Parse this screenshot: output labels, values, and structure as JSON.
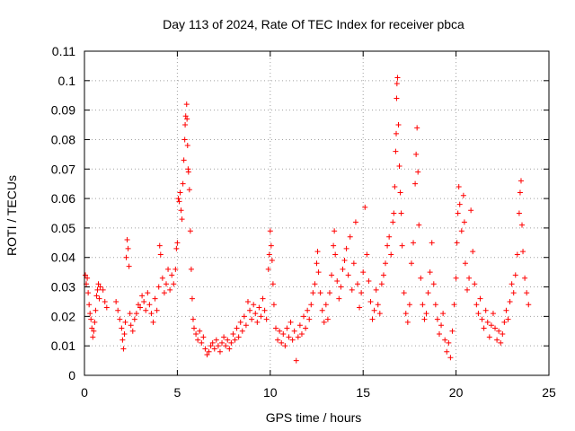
{
  "chart_data": {
    "type": "scatter",
    "title": "Day 113 of 2024, Rate Of TEC Index for receiver pbca",
    "xlabel": "GPS time / hours",
    "ylabel": "ROTI / TECUs",
    "xlim": [
      0,
      25
    ],
    "ylim": [
      0,
      0.11
    ],
    "x_ticks": [
      "0",
      "5",
      "10",
      "15",
      "20",
      "25"
    ],
    "y_ticks": [
      "0",
      "0.01",
      "0.02",
      "0.03",
      "0.04",
      "0.05",
      "0.06",
      "0.07",
      "0.08",
      "0.09",
      "0.1",
      "0.11"
    ],
    "grid": true,
    "marker": "+",
    "series_color": "#ff0000",
    "series": [
      {
        "name": "ROTI",
        "points": [
          [
            0.05,
            0.034
          ],
          [
            0.1,
            0.031
          ],
          [
            0.15,
            0.033
          ],
          [
            0.2,
            0.028
          ],
          [
            0.25,
            0.024
          ],
          [
            0.3,
            0.021
          ],
          [
            0.35,
            0.019
          ],
          [
            0.4,
            0.016
          ],
          [
            0.45,
            0.013
          ],
          [
            0.5,
            0.015
          ],
          [
            0.55,
            0.018
          ],
          [
            0.6,
            0.022
          ],
          [
            0.65,
            0.027
          ],
          [
            0.7,
            0.029
          ],
          [
            0.75,
            0.031
          ],
          [
            0.8,
            0.026
          ],
          [
            0.85,
            0.03
          ],
          [
            1.0,
            0.029
          ],
          [
            1.1,
            0.025
          ],
          [
            1.2,
            0.023
          ],
          [
            1.7,
            0.025
          ],
          [
            1.8,
            0.022
          ],
          [
            1.9,
            0.019
          ],
          [
            2.0,
            0.016
          ],
          [
            2.05,
            0.012
          ],
          [
            2.1,
            0.009
          ],
          [
            2.15,
            0.014
          ],
          [
            2.2,
            0.018
          ],
          [
            2.25,
            0.04
          ],
          [
            2.3,
            0.046
          ],
          [
            2.35,
            0.043
          ],
          [
            2.4,
            0.037
          ],
          [
            2.45,
            0.021
          ],
          [
            2.5,
            0.017
          ],
          [
            2.6,
            0.015
          ],
          [
            2.7,
            0.019
          ],
          [
            2.8,
            0.021
          ],
          [
            2.9,
            0.024
          ],
          [
            3.0,
            0.023
          ],
          [
            3.1,
            0.027
          ],
          [
            3.2,
            0.025
          ],
          [
            3.3,
            0.022
          ],
          [
            3.4,
            0.028
          ],
          [
            3.5,
            0.024
          ],
          [
            3.6,
            0.021
          ],
          [
            3.7,
            0.018
          ],
          [
            3.8,
            0.026
          ],
          [
            3.9,
            0.022
          ],
          [
            4.0,
            0.03
          ],
          [
            4.05,
            0.044
          ],
          [
            4.1,
            0.041
          ],
          [
            4.2,
            0.033
          ],
          [
            4.3,
            0.028
          ],
          [
            4.4,
            0.031
          ],
          [
            4.5,
            0.036
          ],
          [
            4.6,
            0.029
          ],
          [
            4.7,
            0.034
          ],
          [
            4.8,
            0.031
          ],
          [
            4.9,
            0.036
          ],
          [
            4.95,
            0.043
          ],
          [
            5.0,
            0.045
          ],
          [
            5.05,
            0.06
          ],
          [
            5.1,
            0.059
          ],
          [
            5.15,
            0.062
          ],
          [
            5.2,
            0.056
          ],
          [
            5.25,
            0.053
          ],
          [
            5.3,
            0.065
          ],
          [
            5.35,
            0.073
          ],
          [
            5.4,
            0.08
          ],
          [
            5.42,
            0.085
          ],
          [
            5.45,
            0.088
          ],
          [
            5.5,
            0.092
          ],
          [
            5.52,
            0.087
          ],
          [
            5.55,
            0.078
          ],
          [
            5.58,
            0.07
          ],
          [
            5.6,
            0.069
          ],
          [
            5.65,
            0.063
          ],
          [
            5.7,
            0.049
          ],
          [
            5.75,
            0.036
          ],
          [
            5.8,
            0.026
          ],
          [
            5.85,
            0.019
          ],
          [
            5.9,
            0.016
          ],
          [
            6.0,
            0.014
          ],
          [
            6.1,
            0.012
          ],
          [
            6.2,
            0.015
          ],
          [
            6.3,
            0.011
          ],
          [
            6.4,
            0.013
          ],
          [
            6.5,
            0.009
          ],
          [
            6.6,
            0.007
          ],
          [
            6.7,
            0.008
          ],
          [
            6.8,
            0.01
          ],
          [
            6.9,
            0.011
          ],
          [
            7.0,
            0.009
          ],
          [
            7.1,
            0.012
          ],
          [
            7.2,
            0.01
          ],
          [
            7.3,
            0.008
          ],
          [
            7.4,
            0.011
          ],
          [
            7.5,
            0.013
          ],
          [
            7.6,
            0.01
          ],
          [
            7.7,
            0.012
          ],
          [
            7.8,
            0.009
          ],
          [
            7.9,
            0.011
          ],
          [
            8.0,
            0.014
          ],
          [
            8.1,
            0.012
          ],
          [
            8.2,
            0.016
          ],
          [
            8.3,
            0.013
          ],
          [
            8.4,
            0.018
          ],
          [
            8.5,
            0.015
          ],
          [
            8.6,
            0.02
          ],
          [
            8.7,
            0.017
          ],
          [
            8.8,
            0.025
          ],
          [
            8.9,
            0.022
          ],
          [
            9.0,
            0.019
          ],
          [
            9.1,
            0.024
          ],
          [
            9.2,
            0.021
          ],
          [
            9.3,
            0.018
          ],
          [
            9.4,
            0.023
          ],
          [
            9.5,
            0.02
          ],
          [
            9.6,
            0.026
          ],
          [
            9.7,
            0.022
          ],
          [
            9.8,
            0.019
          ],
          [
            9.9,
            0.036
          ],
          [
            9.95,
            0.041
          ],
          [
            10.0,
            0.049
          ],
          [
            10.05,
            0.044
          ],
          [
            10.1,
            0.039
          ],
          [
            10.15,
            0.031
          ],
          [
            10.2,
            0.024
          ],
          [
            10.3,
            0.016
          ],
          [
            10.4,
            0.012
          ],
          [
            10.5,
            0.015
          ],
          [
            10.6,
            0.011
          ],
          [
            10.7,
            0.014
          ],
          [
            10.8,
            0.01
          ],
          [
            10.9,
            0.016
          ],
          [
            11.0,
            0.013
          ],
          [
            11.1,
            0.018
          ],
          [
            11.2,
            0.012
          ],
          [
            11.3,
            0.015
          ],
          [
            11.4,
            0.005
          ],
          [
            11.5,
            0.013
          ],
          [
            11.6,
            0.017
          ],
          [
            11.7,
            0.014
          ],
          [
            11.8,
            0.02
          ],
          [
            11.9,
            0.016
          ],
          [
            12.0,
            0.022
          ],
          [
            12.1,
            0.019
          ],
          [
            12.2,
            0.024
          ],
          [
            12.3,
            0.028
          ],
          [
            12.4,
            0.031
          ],
          [
            12.5,
            0.038
          ],
          [
            12.55,
            0.042
          ],
          [
            12.6,
            0.035
          ],
          [
            12.7,
            0.028
          ],
          [
            12.8,
            0.022
          ],
          [
            12.9,
            0.018
          ],
          [
            13.0,
            0.024
          ],
          [
            13.1,
            0.019
          ],
          [
            13.2,
            0.028
          ],
          [
            13.3,
            0.034
          ],
          [
            13.4,
            0.044
          ],
          [
            13.45,
            0.049
          ],
          [
            13.5,
            0.041
          ],
          [
            13.6,
            0.032
          ],
          [
            13.7,
            0.026
          ],
          [
            13.8,
            0.03
          ],
          [
            13.9,
            0.036
          ],
          [
            14.0,
            0.039
          ],
          [
            14.1,
            0.043
          ],
          [
            14.2,
            0.034
          ],
          [
            14.3,
            0.047
          ],
          [
            14.4,
            0.029
          ],
          [
            14.5,
            0.038
          ],
          [
            14.6,
            0.052
          ],
          [
            14.7,
            0.031
          ],
          [
            14.8,
            0.023
          ],
          [
            14.9,
            0.028
          ],
          [
            15.0,
            0.035
          ],
          [
            15.1,
            0.057
          ],
          [
            15.2,
            0.041
          ],
          [
            15.3,
            0.032
          ],
          [
            15.4,
            0.025
          ],
          [
            15.5,
            0.019
          ],
          [
            15.6,
            0.022
          ],
          [
            15.7,
            0.029
          ],
          [
            15.8,
            0.024
          ],
          [
            15.9,
            0.021
          ],
          [
            16.0,
            0.031
          ],
          [
            16.1,
            0.034
          ],
          [
            16.2,
            0.038
          ],
          [
            16.3,
            0.044
          ],
          [
            16.4,
            0.047
          ],
          [
            16.5,
            0.041
          ],
          [
            16.6,
            0.052
          ],
          [
            16.65,
            0.055
          ],
          [
            16.7,
            0.064
          ],
          [
            16.75,
            0.076
          ],
          [
            16.78,
            0.082
          ],
          [
            16.8,
            0.094
          ],
          [
            16.82,
            0.099
          ],
          [
            16.85,
            0.101
          ],
          [
            16.9,
            0.085
          ],
          [
            16.95,
            0.071
          ],
          [
            17.0,
            0.062
          ],
          [
            17.05,
            0.055
          ],
          [
            17.1,
            0.044
          ],
          [
            17.2,
            0.028
          ],
          [
            17.3,
            0.021
          ],
          [
            17.4,
            0.018
          ],
          [
            17.5,
            0.024
          ],
          [
            17.6,
            0.038
          ],
          [
            17.7,
            0.045
          ],
          [
            17.8,
            0.065
          ],
          [
            17.85,
            0.075
          ],
          [
            17.9,
            0.084
          ],
          [
            17.95,
            0.069
          ],
          [
            18.0,
            0.051
          ],
          [
            18.1,
            0.033
          ],
          [
            18.2,
            0.024
          ],
          [
            18.3,
            0.019
          ],
          [
            18.4,
            0.021
          ],
          [
            18.5,
            0.028
          ],
          [
            18.6,
            0.035
          ],
          [
            18.7,
            0.045
          ],
          [
            18.8,
            0.031
          ],
          [
            18.9,
            0.024
          ],
          [
            19.0,
            0.019
          ],
          [
            19.1,
            0.014
          ],
          [
            19.2,
            0.017
          ],
          [
            19.3,
            0.021
          ],
          [
            19.4,
            0.012
          ],
          [
            19.5,
            0.008
          ],
          [
            19.6,
            0.011
          ],
          [
            19.7,
            0.006
          ],
          [
            19.8,
            0.015
          ],
          [
            19.9,
            0.024
          ],
          [
            20.0,
            0.033
          ],
          [
            20.05,
            0.045
          ],
          [
            20.1,
            0.055
          ],
          [
            20.15,
            0.064
          ],
          [
            20.2,
            0.058
          ],
          [
            20.3,
            0.049
          ],
          [
            20.4,
            0.061
          ],
          [
            20.45,
            0.052
          ],
          [
            20.5,
            0.038
          ],
          [
            20.6,
            0.029
          ],
          [
            20.7,
            0.033
          ],
          [
            20.8,
            0.056
          ],
          [
            20.9,
            0.042
          ],
          [
            21.0,
            0.031
          ],
          [
            21.1,
            0.024
          ],
          [
            21.2,
            0.021
          ],
          [
            21.3,
            0.026
          ],
          [
            21.4,
            0.019
          ],
          [
            21.5,
            0.016
          ],
          [
            21.6,
            0.022
          ],
          [
            21.7,
            0.018
          ],
          [
            21.8,
            0.013
          ],
          [
            21.9,
            0.017
          ],
          [
            22.0,
            0.021
          ],
          [
            22.1,
            0.016
          ],
          [
            22.2,
            0.012
          ],
          [
            22.3,
            0.015
          ],
          [
            22.4,
            0.011
          ],
          [
            22.5,
            0.014
          ],
          [
            22.6,
            0.018
          ],
          [
            22.7,
            0.022
          ],
          [
            22.8,
            0.019
          ],
          [
            22.9,
            0.025
          ],
          [
            23.0,
            0.031
          ],
          [
            23.1,
            0.028
          ],
          [
            23.2,
            0.034
          ],
          [
            23.3,
            0.041
          ],
          [
            23.4,
            0.055
          ],
          [
            23.45,
            0.062
          ],
          [
            23.5,
            0.066
          ],
          [
            23.55,
            0.051
          ],
          [
            23.6,
            0.042
          ],
          [
            23.7,
            0.033
          ],
          [
            23.8,
            0.028
          ],
          [
            23.9,
            0.024
          ]
        ]
      }
    ]
  }
}
